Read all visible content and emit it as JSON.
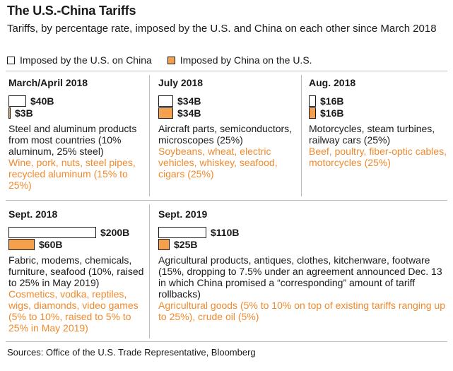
{
  "chart_data": {
    "type": "bar",
    "title": "The U.S.-China Tariffs",
    "subtitle": "Tariffs, by percentage rate, imposed by the U.S. and China on each other since March 2018",
    "unit": "billion USD",
    "legend": {
      "us": "Imposed by the U.S. on China",
      "china": "Imposed by China on the U.S.",
      "colors": {
        "us": "#ffffff",
        "china": "#f5a04d"
      }
    },
    "series": [
      {
        "name": "Imposed by the U.S. on China",
        "values": [
          40,
          34,
          16,
          200,
          110
        ]
      },
      {
        "name": "Imposed by China on the U.S.",
        "values": [
          3,
          34,
          16,
          60,
          25
        ]
      }
    ],
    "categories": [
      "March/April 2018",
      "July 2018",
      "Aug. 2018",
      "Sept. 2018",
      "Sept. 2019"
    ],
    "panels": [
      {
        "date": "March/April 2018",
        "us_value": 40,
        "us_label": "$40B",
        "cn_value": 3,
        "cn_label": "$3B",
        "us_text": "Steel and aluminum products from most countries (10% aluminum, 25% steel)",
        "cn_text": "Wine, pork, nuts, steel pipes, recycled aluminum (15% to 25%)"
      },
      {
        "date": "July 2018",
        "us_value": 34,
        "us_label": "$34B",
        "cn_value": 34,
        "cn_label": "$34B",
        "us_text": "Aircraft parts, semiconductors, microscopes (25%)",
        "cn_text": "Soybeans, wheat, electric vehicles, whiskey, seafood, cigars (25%)"
      },
      {
        "date": "Aug. 2018",
        "us_value": 16,
        "us_label": "$16B",
        "cn_value": 16,
        "cn_label": "$16B",
        "us_text": "Motorcycles, steam turbines, railway cars (25%)",
        "cn_text": "Beef, poultry, fiber-optic cables, motorcycles (25%)"
      },
      {
        "date": "Sept. 2018",
        "us_value": 200,
        "us_label": "$200B",
        "cn_value": 60,
        "cn_label": "$60B",
        "us_text": "Fabric, modems, chemicals, furniture, seafood (10%, raised to 25% in May 2019)",
        "cn_text": "Cosmetics, vodka, reptiles, wigs, diamonds, video games (5% to 10%, raised to 5% to 25% in May 2019)"
      },
      {
        "date": "Sept. 2019",
        "us_value": 110,
        "us_label": "$110B",
        "cn_value": 25,
        "cn_label": "$25B",
        "us_text": "Agricultural products, antiques, clothes, kitchenware, footware (15%, dropping to 7.5% under an agreement announced Dec. 13 in which China promised a “corresponding” amount of tariff rollbacks)",
        "cn_text": "Agricultural goods (5% to 10% on top of existing tariffs ranging up to 25%), crude oil (5%)"
      }
    ],
    "source": "Sources: Office of the U.S. Trade Representative, Bloomberg"
  }
}
